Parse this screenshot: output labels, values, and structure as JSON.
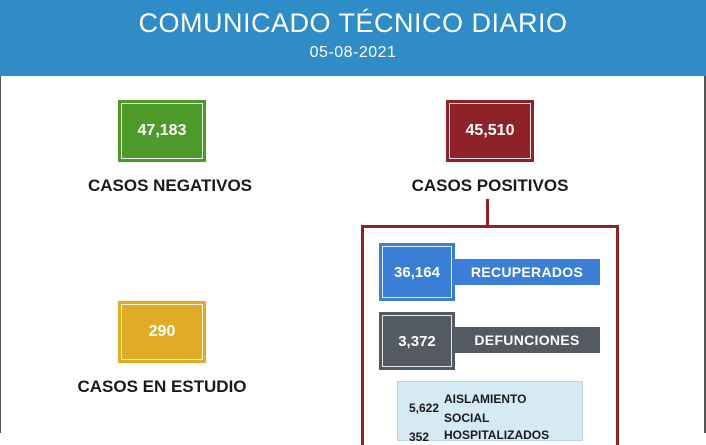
{
  "header": {
    "title": "COMUNICADO TÉCNICO DIARIO",
    "date": "05-08-2021"
  },
  "negativos": {
    "value": "47,183",
    "label": "CASOS NEGATIVOS",
    "color": "#4d9a2a"
  },
  "positivos": {
    "value": "45,510",
    "label": "CASOS POSITIVOS",
    "color": "#8f2228"
  },
  "estudio": {
    "value": "290",
    "label": "CASOS EN ESTUDIO",
    "color": "#e0ac25"
  },
  "recuperados": {
    "value": "36,164",
    "label": "RECUPERADOS",
    "color": "#3a7fd5"
  },
  "defunciones": {
    "value": "3,372",
    "label": "DEFUNCIONES",
    "color": "#545a61"
  },
  "aislamiento": {
    "value": "5,622",
    "line1": "AISLAMIENTO",
    "line2": "SOCIAL"
  },
  "hospitalizados": {
    "value": "352",
    "label": "HOSPITALIZADOS"
  }
}
